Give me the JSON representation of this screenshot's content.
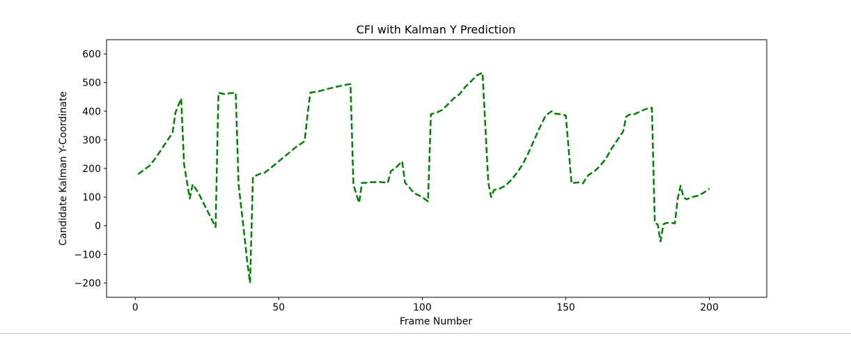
{
  "chart_data": {
    "type": "line",
    "title": "CFI with Kalman Y Prediction",
    "xlabel": "Frame Number",
    "ylabel": "Candidate Kalman Y-Coordinate",
    "xlim": [
      -10,
      220
    ],
    "ylim": [
      -250,
      650
    ],
    "xticks": [
      0,
      50,
      100,
      150,
      200
    ],
    "yticks": [
      -200,
      -100,
      0,
      100,
      200,
      300,
      400,
      500,
      600
    ],
    "grid": false,
    "legend": "none",
    "series": [
      {
        "color": "#008000",
        "linestyle": "dashed",
        "x": [
          1,
          3,
          5,
          7,
          9,
          11,
          13,
          14,
          15,
          16,
          17,
          18,
          19,
          20,
          22,
          24,
          26,
          28,
          29,
          31,
          33,
          35,
          36,
          38,
          39,
          40,
          41,
          43,
          45,
          47,
          50,
          53,
          56,
          59,
          60,
          61,
          64,
          67,
          70,
          73,
          75,
          76,
          77,
          78,
          79,
          80,
          82,
          85,
          88,
          89,
          91,
          93,
          94,
          95,
          97,
          100,
          102,
          103,
          105,
          107,
          109,
          111,
          113,
          115,
          117,
          119,
          121,
          123,
          124,
          125,
          127,
          129,
          131,
          133,
          135,
          137,
          139,
          141,
          143,
          145,
          146,
          148,
          150,
          152,
          153,
          155,
          156,
          157,
          158,
          160,
          162,
          164,
          166,
          168,
          170,
          171,
          172,
          174,
          176,
          178,
          180,
          181,
          182,
          183,
          184,
          185,
          187,
          188,
          189,
          190,
          191,
          192,
          194,
          196,
          198,
          200
        ],
        "y": [
          180,
          195,
          210,
          235,
          265,
          295,
          325,
          395,
          420,
          445,
          215,
          155,
          95,
          145,
          115,
          75,
          35,
          -5,
          465,
          460,
          463,
          465,
          145,
          -30,
          -125,
          -200,
          170,
          180,
          185,
          200,
          225,
          250,
          275,
          295,
          385,
          465,
          470,
          478,
          485,
          492,
          495,
          145,
          110,
          80,
          150,
          150,
          152,
          153,
          150,
          190,
          205,
          225,
          150,
          140,
          115,
          100,
          85,
          390,
          395,
          405,
          425,
          445,
          460,
          485,
          505,
          525,
          535,
          150,
          100,
          125,
          130,
          140,
          160,
          185,
          215,
          255,
          300,
          345,
          385,
          400,
          392,
          390,
          385,
          148,
          150,
          152,
          148,
          165,
          178,
          190,
          210,
          235,
          270,
          300,
          330,
          380,
          388,
          390,
          400,
          408,
          412,
          10,
          5,
          -55,
          5,
          10,
          10,
          8,
          95,
          140,
          100,
          92,
          100,
          105,
          115,
          130
        ]
      }
    ]
  }
}
